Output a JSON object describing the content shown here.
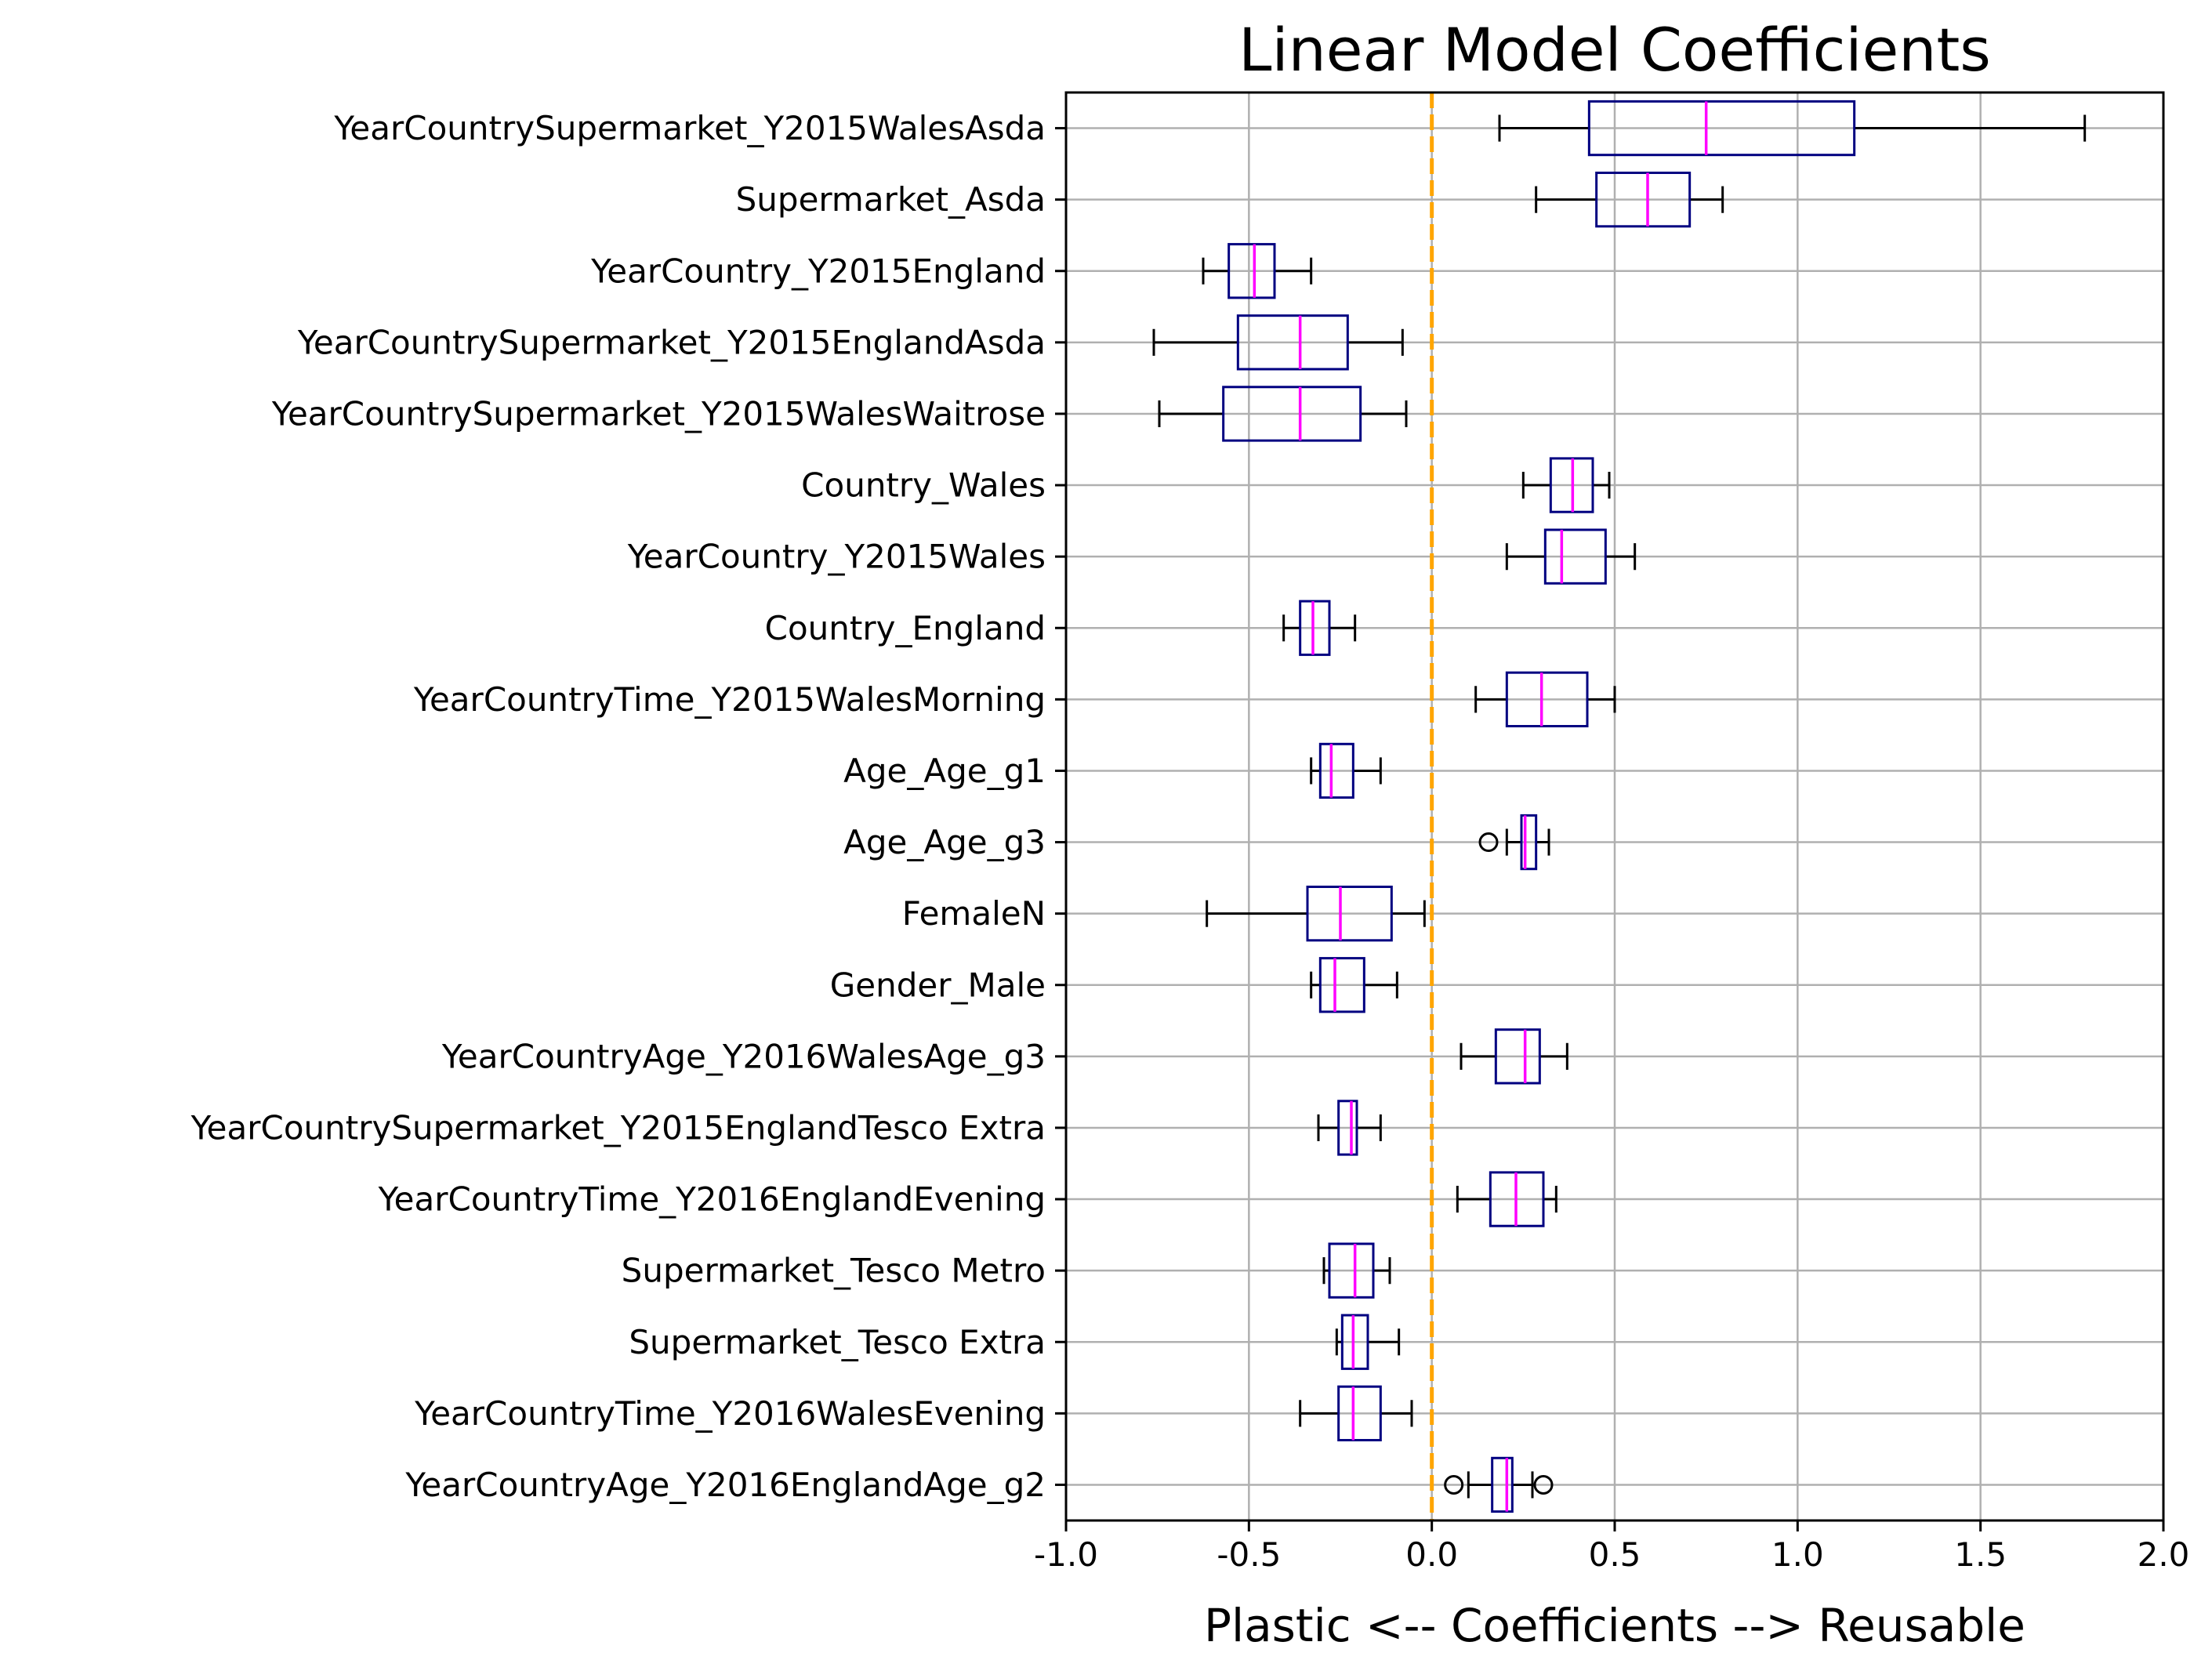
{
  "chart_data": {
    "type": "box",
    "orientation": "horizontal",
    "title": "Linear Model Coefficients",
    "xlabel": "Plastic <-- Coefficients --> Reusable",
    "ylabel": "",
    "xlim": [
      -1.0,
      2.0
    ],
    "xticks": [
      -1.0,
      -0.5,
      0.0,
      0.5,
      1.0,
      1.5,
      2.0
    ],
    "xtick_labels": [
      "-1.0",
      "-0.5",
      "0.0",
      "0.5",
      "1.0",
      "1.5",
      "2.0"
    ],
    "grid": true,
    "reference_line": {
      "x": 0.0,
      "style": "dashed",
      "color": "#FFA500"
    },
    "colors": {
      "box": "#000080",
      "median": "#FF00FF",
      "whisker": "#000000",
      "grid": "#B0B0B0"
    },
    "categories": [
      "YearCountrySupermarket_Y2015WalesAsda",
      "Supermarket_Asda",
      "YearCountry_Y2015England",
      "YearCountrySupermarket_Y2015EnglandAsda",
      "YearCountrySupermarket_Y2015WalesWaitrose",
      "Country_Wales",
      "YearCountry_Y2015Wales",
      "Country_England",
      "YearCountryTime_Y2015WalesMorning",
      "Age_Age_g1",
      "Age_Age_g3",
      "FemaleN",
      "Gender_Male",
      "YearCountryAge_Y2016WalesAge_g3",
      "YearCountrySupermarket_Y2015EnglandTesco Extra",
      "YearCountryTime_Y2016EnglandEvening",
      "Supermarket_Tesco Metro",
      "Supermarket_Tesco Extra",
      "YearCountryTime_Y2016WalesEvening",
      "YearCountryAge_Y2016EnglandAge_g2"
    ],
    "boxes": [
      {
        "whislo": 0.185,
        "q1": 0.43,
        "median": 0.75,
        "q3": 1.155,
        "whishi": 1.785,
        "fliers": []
      },
      {
        "whislo": 0.285,
        "q1": 0.45,
        "median": 0.59,
        "q3": 0.705,
        "whishi": 0.795,
        "fliers": []
      },
      {
        "whislo": -0.625,
        "q1": -0.555,
        "median": -0.485,
        "q3": -0.43,
        "whishi": -0.33,
        "fliers": []
      },
      {
        "whislo": -0.76,
        "q1": -0.53,
        "median": -0.36,
        "q3": -0.23,
        "whishi": -0.08,
        "fliers": []
      },
      {
        "whislo": -0.745,
        "q1": -0.57,
        "median": -0.36,
        "q3": -0.195,
        "whishi": -0.07,
        "fliers": []
      },
      {
        "whislo": 0.25,
        "q1": 0.325,
        "median": 0.385,
        "q3": 0.44,
        "whishi": 0.485,
        "fliers": []
      },
      {
        "whislo": 0.205,
        "q1": 0.31,
        "median": 0.355,
        "q3": 0.475,
        "whishi": 0.555,
        "fliers": []
      },
      {
        "whislo": -0.405,
        "q1": -0.36,
        "median": -0.325,
        "q3": -0.28,
        "whishi": -0.21,
        "fliers": []
      },
      {
        "whislo": 0.12,
        "q1": 0.205,
        "median": 0.3,
        "q3": 0.425,
        "whishi": 0.5,
        "fliers": []
      },
      {
        "whislo": -0.33,
        "q1": -0.305,
        "median": -0.275,
        "q3": -0.215,
        "whishi": -0.14,
        "fliers": []
      },
      {
        "whislo": 0.205,
        "q1": 0.245,
        "median": 0.255,
        "q3": 0.285,
        "whishi": 0.32,
        "fliers": [
          0.155
        ]
      },
      {
        "whislo": -0.615,
        "q1": -0.34,
        "median": -0.25,
        "q3": -0.11,
        "whishi": -0.02,
        "fliers": []
      },
      {
        "whislo": -0.33,
        "q1": -0.305,
        "median": -0.265,
        "q3": -0.185,
        "whishi": -0.095,
        "fliers": []
      },
      {
        "whislo": 0.08,
        "q1": 0.175,
        "median": 0.255,
        "q3": 0.295,
        "whishi": 0.37,
        "fliers": []
      },
      {
        "whislo": -0.31,
        "q1": -0.255,
        "median": -0.22,
        "q3": -0.205,
        "whishi": -0.14,
        "fliers": []
      },
      {
        "whislo": 0.07,
        "q1": 0.16,
        "median": 0.23,
        "q3": 0.305,
        "whishi": 0.34,
        "fliers": []
      },
      {
        "whislo": -0.295,
        "q1": -0.28,
        "median": -0.21,
        "q3": -0.16,
        "whishi": -0.115,
        "fliers": []
      },
      {
        "whislo": -0.26,
        "q1": -0.245,
        "median": -0.215,
        "q3": -0.175,
        "whishi": -0.09,
        "fliers": []
      },
      {
        "whislo": -0.36,
        "q1": -0.255,
        "median": -0.215,
        "q3": -0.14,
        "whishi": -0.055,
        "fliers": []
      },
      {
        "whislo": 0.1,
        "q1": 0.165,
        "median": 0.205,
        "q3": 0.22,
        "whishi": 0.275,
        "fliers": [
          0.06,
          0.305
        ]
      }
    ]
  }
}
